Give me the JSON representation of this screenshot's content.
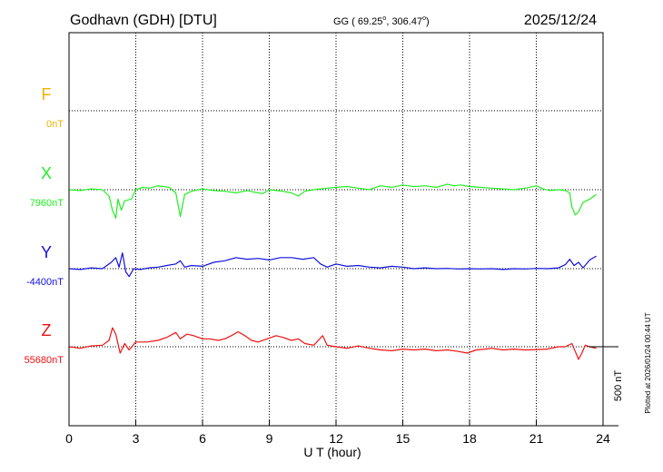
{
  "header": {
    "station": "Godhavn (GDH)  [DTU]",
    "coords_prefix": "GG ( 69.25",
    "coords_mid": ", 306.47",
    "coords_suffix": ")",
    "date": "2025/12/24"
  },
  "footnote": "Plotted at 2026/01/24 00:44 UT",
  "colors": {
    "F": "#f2b100",
    "X": "#22ee22",
    "Y": "#1111dd",
    "Z": "#ee1111",
    "axis": "#000000"
  },
  "chart_data": {
    "type": "line",
    "xlabel": "U T (hour)",
    "xlim": [
      0,
      24
    ],
    "xticks": [
      0,
      3,
      6,
      9,
      12,
      15,
      18,
      21,
      24
    ],
    "tick_labels": [
      "0",
      "3",
      "6",
      "9",
      "12",
      "15",
      "18",
      "21",
      "24"
    ],
    "grid": true,
    "scale_bar": {
      "value_nT": 500,
      "label": "500 nT"
    },
    "series": [
      {
        "name": "F",
        "baseline_label": "0nT",
        "baseline_nT": 0,
        "color": "#f2b100",
        "x": [],
        "y": []
      },
      {
        "name": "X",
        "baseline_label": "7960nT",
        "baseline_nT": 7960,
        "color": "#22ee22",
        "x": [
          0,
          0.5,
          1,
          1.5,
          1.8,
          1.95,
          2.1,
          2.2,
          2.35,
          2.5,
          2.8,
          3,
          3.3,
          3.6,
          4,
          4.5,
          4.8,
          5,
          5.2,
          5.5,
          6,
          6.5,
          7,
          7.5,
          8,
          8.3,
          8.7,
          9,
          9.3,
          9.6,
          10,
          10.3,
          10.6,
          11,
          11.3,
          11.6,
          12,
          12.5,
          13,
          13.5,
          14,
          14.5,
          15,
          15.5,
          16,
          16.5,
          17,
          17.3,
          17.6,
          18,
          18.5,
          19,
          19.5,
          20,
          20.5,
          21,
          21.3,
          21.6,
          22,
          22.3,
          22.5,
          22.6,
          22.75,
          22.9,
          23.1,
          23.4,
          23.7
        ],
        "y": [
          7960,
          7955,
          7965,
          7960,
          7920,
          7830,
          7780,
          7900,
          7830,
          7890,
          7900,
          7960,
          7975,
          7970,
          7985,
          7975,
          7940,
          7790,
          7930,
          7950,
          7965,
          7955,
          7950,
          7940,
          7955,
          7945,
          7935,
          7960,
          7955,
          7950,
          7940,
          7920,
          7950,
          7960,
          7965,
          7970,
          7975,
          7980,
          7970,
          7960,
          7985,
          7975,
          7990,
          7980,
          7985,
          7975,
          7995,
          7985,
          7990,
          7980,
          7975,
          7970,
          7965,
          7960,
          7970,
          7985,
          7965,
          7955,
          7960,
          7955,
          7940,
          7850,
          7800,
          7820,
          7880,
          7900,
          7930
        ]
      },
      {
        "name": "Y",
        "baseline_label": "-4400nT",
        "baseline_nT": -4400,
        "color": "#1111dd",
        "x": [
          0,
          0.5,
          1,
          1.5,
          1.9,
          2.1,
          2.25,
          2.4,
          2.55,
          2.7,
          2.9,
          3.2,
          3.6,
          4,
          4.4,
          4.8,
          5,
          5.2,
          5.5,
          6,
          6.5,
          7,
          7.5,
          8,
          8.5,
          9,
          9.5,
          10,
          10.5,
          11,
          11.3,
          11.6,
          12,
          12.5,
          13,
          13.5,
          14,
          14.5,
          15,
          15.5,
          16,
          16.5,
          17,
          17.5,
          18,
          18.5,
          19,
          19.5,
          20,
          20.5,
          21,
          21.5,
          22,
          22.3,
          22.5,
          22.7,
          22.9,
          23.1,
          23.4,
          23.7
        ],
        "y": [
          -4400,
          -4405,
          -4395,
          -4400,
          -4360,
          -4330,
          -4390,
          -4300,
          -4420,
          -4450,
          -4400,
          -4405,
          -4395,
          -4390,
          -4380,
          -4370,
          -4350,
          -4390,
          -4380,
          -4385,
          -4360,
          -4350,
          -4330,
          -4340,
          -4335,
          -4345,
          -4330,
          -4330,
          -4340,
          -4330,
          -4370,
          -4390,
          -4370,
          -4385,
          -4380,
          -4390,
          -4395,
          -4385,
          -4390,
          -4400,
          -4395,
          -4400,
          -4398,
          -4402,
          -4400,
          -4402,
          -4400,
          -4405,
          -4400,
          -4402,
          -4398,
          -4400,
          -4395,
          -4375,
          -4340,
          -4380,
          -4360,
          -4395,
          -4345,
          -4320
        ]
      },
      {
        "name": "Z",
        "baseline_label": "55680nT",
        "baseline_nT": 55680,
        "color": "#ee1111",
        "x": [
          0,
          0.5,
          1,
          1.5,
          1.8,
          1.95,
          2.1,
          2.3,
          2.5,
          2.7,
          3,
          3.5,
          4,
          4.4,
          4.8,
          5,
          5.3,
          5.6,
          6,
          6.3,
          6.7,
          7,
          7.3,
          7.6,
          7.9,
          8.2,
          8.5,
          9,
          9.3,
          9.6,
          10,
          10.3,
          10.6,
          11,
          11.2,
          11.4,
          11.6,
          12,
          12.5,
          13,
          13.5,
          14,
          14.5,
          15,
          15.5,
          16,
          16.5,
          17,
          17.5,
          17.9,
          18.3,
          18.7,
          19,
          19.5,
          20,
          20.5,
          21,
          21.5,
          22,
          22.3,
          22.6,
          22.75,
          22.9,
          23.05,
          23.2,
          23.4,
          23.7
        ],
        "y": [
          55680,
          55670,
          55685,
          55690,
          55720,
          55800,
          55760,
          55640,
          55700,
          55660,
          55710,
          55710,
          55720,
          55740,
          55770,
          55730,
          55760,
          55750,
          55730,
          55730,
          55720,
          55730,
          55750,
          55775,
          55750,
          55720,
          55710,
          55735,
          55750,
          55740,
          55720,
          55730,
          55700,
          55690,
          55720,
          55750,
          55690,
          55680,
          55670,
          55685,
          55670,
          55660,
          55655,
          55665,
          55660,
          55665,
          55655,
          55660,
          55650,
          55640,
          55660,
          55665,
          55670,
          55660,
          55665,
          55660,
          55662,
          55665,
          55680,
          55680,
          55700,
          55650,
          55600,
          55640,
          55690,
          55680,
          55670
        ]
      }
    ]
  }
}
